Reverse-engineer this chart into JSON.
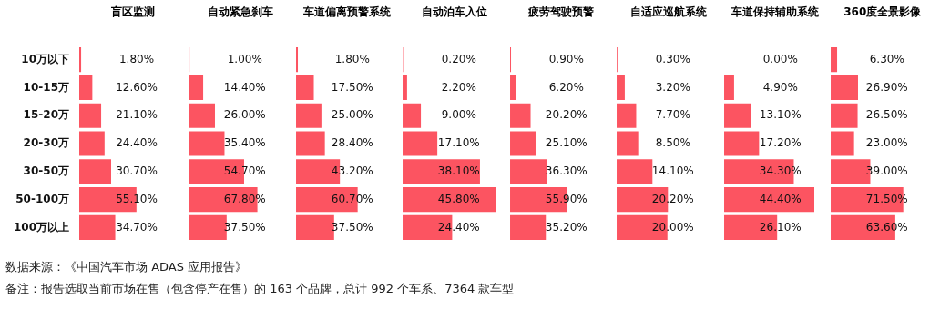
{
  "chart_data": [
    {
      "type": "bar",
      "orientation": "horizontal",
      "title": "盲区监测",
      "categories": [
        "10万以下",
        "10-15万",
        "15-20万",
        "20-30万",
        "30-50万",
        "50-100万",
        "100万以上"
      ],
      "values": [
        1.8,
        12.6,
        21.1,
        24.4,
        30.7,
        55.1,
        34.7
      ],
      "value_labels": [
        "1.80%",
        "12.60%",
        "21.10%",
        "24.40%",
        "30.70%",
        "55.10%",
        "34.70%"
      ],
      "color": "#fc5461",
      "tick_labels": "y"
    },
    {
      "type": "bar",
      "orientation": "horizontal",
      "title": "自动紧急刹车",
      "categories": [
        null,
        null,
        null,
        null,
        null,
        null,
        null
      ],
      "values": [
        1.0,
        14.4,
        26.0,
        35.4,
        54.7,
        67.8,
        37.5
      ],
      "value_labels": [
        "1.00%",
        "14.40%",
        "26.00%",
        "35.40%",
        "54.70%",
        "67.80%",
        "37.50%"
      ],
      "color": "#fc5461",
      "tick_labels": false
    },
    {
      "type": "bar",
      "orientation": "horizontal",
      "title": "车道偏离预警系统",
      "categories": [
        null,
        null,
        null,
        null,
        null,
        null,
        null
      ],
      "values": [
        1.8,
        17.5,
        25.0,
        28.4,
        43.2,
        60.7,
        37.5
      ],
      "value_labels": [
        "1.80%",
        "17.50%",
        "25.00%",
        "28.40%",
        "43.20%",
        "60.70%",
        "37.50%"
      ],
      "color": "#fc5461",
      "tick_labels": false
    },
    {
      "type": "bar",
      "orientation": "horizontal",
      "title": "自动泊车入位",
      "categories": [
        null,
        null,
        null,
        null,
        null,
        null,
        null
      ],
      "values": [
        0.2,
        2.2,
        9.0,
        17.1,
        38.1,
        45.8,
        24.4
      ],
      "value_labels": [
        "0.20%",
        "2.20%",
        "9.00%",
        "17.10%",
        "38.10%",
        "45.80%",
        "24.40%"
      ],
      "color": "#fc5461",
      "tick_labels": false
    },
    {
      "type": "bar",
      "orientation": "horizontal",
      "title": "疲劳驾驶预警",
      "categories": [
        null,
        null,
        null,
        null,
        null,
        null,
        null
      ],
      "values": [
        0.9,
        6.2,
        20.2,
        25.1,
        36.3,
        55.9,
        35.2
      ],
      "value_labels": [
        "0.90%",
        "6.20%",
        "20.20%",
        "25.10%",
        "36.30%",
        "55.90%",
        "35.20%"
      ],
      "color": "#fc5461",
      "tick_labels": false
    },
    {
      "type": "bar",
      "orientation": "horizontal",
      "title": "自适应巡航系统",
      "categories": [
        null,
        null,
        null,
        null,
        null,
        null,
        null
      ],
      "values": [
        0.3,
        3.2,
        7.7,
        8.5,
        14.1,
        20.2,
        20.0
      ],
      "value_labels": [
        "0.30%",
        "3.20%",
        "7.70%",
        "8.50%",
        "14.10%",
        "20.20%",
        "20.00%"
      ],
      "color": "#fc5461",
      "tick_labels": false
    },
    {
      "type": "bar",
      "orientation": "horizontal",
      "title": "车道保持辅助系统",
      "categories": [
        null,
        null,
        null,
        null,
        null,
        null,
        null
      ],
      "values": [
        0.0,
        4.9,
        13.1,
        17.2,
        34.3,
        44.4,
        26.1
      ],
      "value_labels": [
        "0.00%",
        "4.90%",
        "13.10%",
        "17.20%",
        "34.30%",
        "44.40%",
        "26.10%"
      ],
      "color": "#fc5461",
      "tick_labels": false
    },
    {
      "type": "bar",
      "orientation": "horizontal",
      "title": "360度全景影像",
      "categories": [
        null,
        null,
        null,
        null,
        null,
        null,
        null
      ],
      "values": [
        6.3,
        26.9,
        26.5,
        23.0,
        39.0,
        71.5,
        63.6
      ],
      "value_labels": [
        "6.30%",
        "26.90%",
        "26.50%",
        "23.00%",
        "39.00%",
        "71.50%",
        "63.60%"
      ],
      "color": "#fc5461",
      "tick_labels": false,
      "annotations": [
        "数据来源：《中国汽车市场 ADAS 应用报告》",
        "备注：报告选取当前市场在售（包含停产在售）的 163 个品牌，总计 992 个车系、7364 款车型"
      ]
    }
  ]
}
